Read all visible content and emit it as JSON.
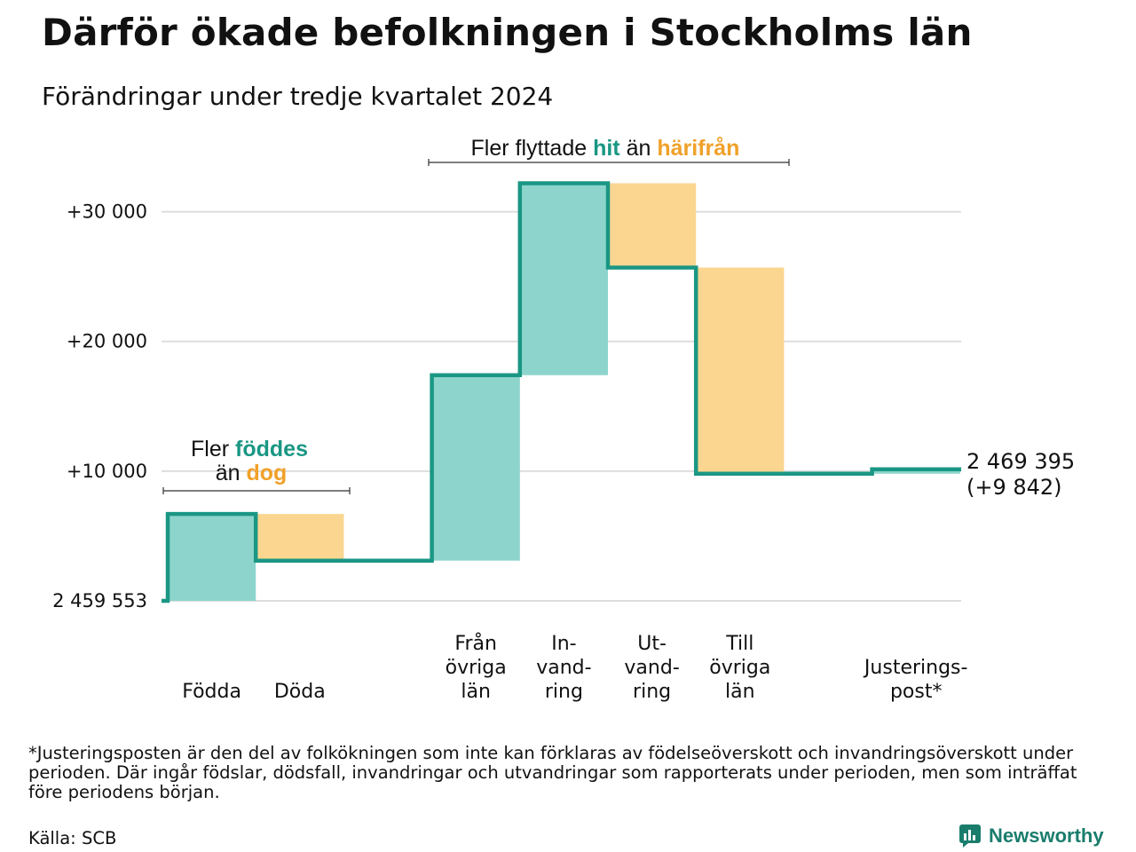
{
  "title": "Därför ökade befolkningen i Stockholms län",
  "subtitle": "Förändringar under tredje kvartalet 2024",
  "footnote": "*Justeringsposten är den del av folkökningen som inte kan förklaras av födelseöverskott och invandringsöverskott under perioden. Där ingår födslar, dödsfall, invandringar och utvandringar som rapporterats under perioden, men som inträffat före periodens början.",
  "source": "Källa: SCB",
  "brand": {
    "name": "Newsworthy",
    "icon": "newsworthy-logo-icon"
  },
  "colors": {
    "increase": "#8dd5cc",
    "decrease": "#fad690",
    "line": "#1a9784",
    "accent_green": "#1a9784",
    "accent_orange": "#f0a12a",
    "grid": "#dddddd"
  },
  "annotations": {
    "birth": {
      "line1_prefix": "Fler",
      "line1_word": "föddes",
      "line2_prefix": "än",
      "line2_word": "dog"
    },
    "migration": {
      "prefix": "Fler flyttade",
      "word1": "hit",
      "middle": "än",
      "word2": "härifrån"
    }
  },
  "chart_data": {
    "type": "waterfall",
    "start_label": "2 459 553",
    "end_label": "2 469 395",
    "end_change_label": "(+9 842)",
    "y_ticks": [
      {
        "value": 0,
        "label": "2 459 553"
      },
      {
        "value": 10000,
        "label": "+10 000"
      },
      {
        "value": 20000,
        "label": "+20 000"
      },
      {
        "value": 30000,
        "label": "+30 000"
      }
    ],
    "ylim": [
      0,
      33000
    ],
    "steps": [
      {
        "label_lines": [
          "Födda"
        ],
        "delta": 6700
      },
      {
        "label_lines": [
          "Döda"
        ],
        "delta": -3600
      },
      {
        "label_lines": [],
        "delta": 0
      },
      {
        "label_lines": [
          "Från",
          "övriga",
          "län"
        ],
        "delta": 14300
      },
      {
        "label_lines": [
          "In-",
          "vand-",
          "ring"
        ],
        "delta": 14800
      },
      {
        "label_lines": [
          "Ut-",
          "vand-",
          "ring"
        ],
        "delta": -6500
      },
      {
        "label_lines": [
          "Till",
          "övriga",
          "län"
        ],
        "delta": -15900
      },
      {
        "label_lines": [],
        "delta": 0
      },
      {
        "label_lines": [
          "Justerings-",
          "post*"
        ],
        "delta": 342
      }
    ]
  }
}
